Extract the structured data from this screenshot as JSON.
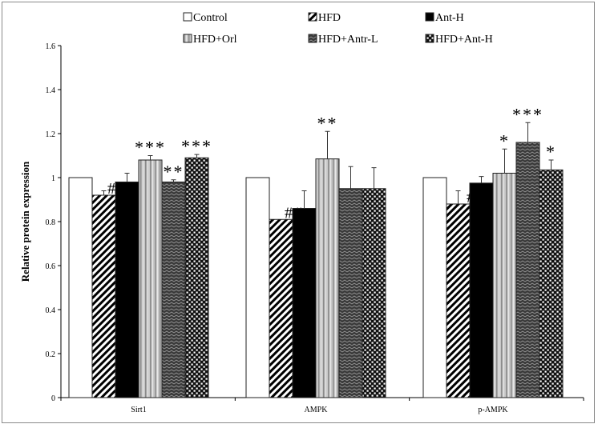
{
  "chart_data": {
    "type": "bar",
    "title": "",
    "xlabel": "",
    "ylabel": "Relative protein expression",
    "ylim": [
      0,
      1.6
    ],
    "yticks": [
      "0",
      "0.2",
      "0.4",
      "0.6",
      "0.8",
      "1",
      "1.2",
      "1.4",
      "1.6"
    ],
    "grid": false,
    "legend_position": "top",
    "categories": [
      "Sirt1",
      "AMPK",
      "p-AMPK"
    ],
    "series": [
      {
        "name": "Control",
        "fill": "white",
        "values": [
          1.0,
          1.0,
          1.0
        ],
        "errors": [
          0,
          0,
          0
        ],
        "annotations": [
          "",
          "",
          ""
        ]
      },
      {
        "name": "HFD",
        "fill": "diagonal",
        "values": [
          0.92,
          0.81,
          0.88
        ],
        "errors": [
          0.02,
          0,
          0.06
        ],
        "annotations": [
          "##",
          "##",
          "#"
        ]
      },
      {
        "name": "Ant-H",
        "fill": "black",
        "values": [
          0.98,
          0.86,
          0.975
        ],
        "errors": [
          0.04,
          0.08,
          0.03
        ],
        "annotations": [
          "",
          "",
          ""
        ]
      },
      {
        "name": "HFD+Orl",
        "fill": "vertical-gray",
        "values": [
          1.08,
          1.085,
          1.02
        ],
        "errors": [
          0.02,
          0.125,
          0.11
        ],
        "annotations": [
          "***",
          "**",
          "*"
        ]
      },
      {
        "name": "HFD+Antr-L",
        "fill": "dark-zigzag",
        "values": [
          0.98,
          0.95,
          1.16
        ],
        "errors": [
          0.01,
          0.1,
          0.09
        ],
        "annotations": [
          "**",
          "",
          "***"
        ]
      },
      {
        "name": "HFD+Ant-H",
        "fill": "checker",
        "values": [
          1.09,
          0.95,
          1.035
        ],
        "errors": [
          0.015,
          0.095,
          0.045
        ],
        "annotations": [
          "***",
          "",
          "*"
        ]
      }
    ]
  }
}
